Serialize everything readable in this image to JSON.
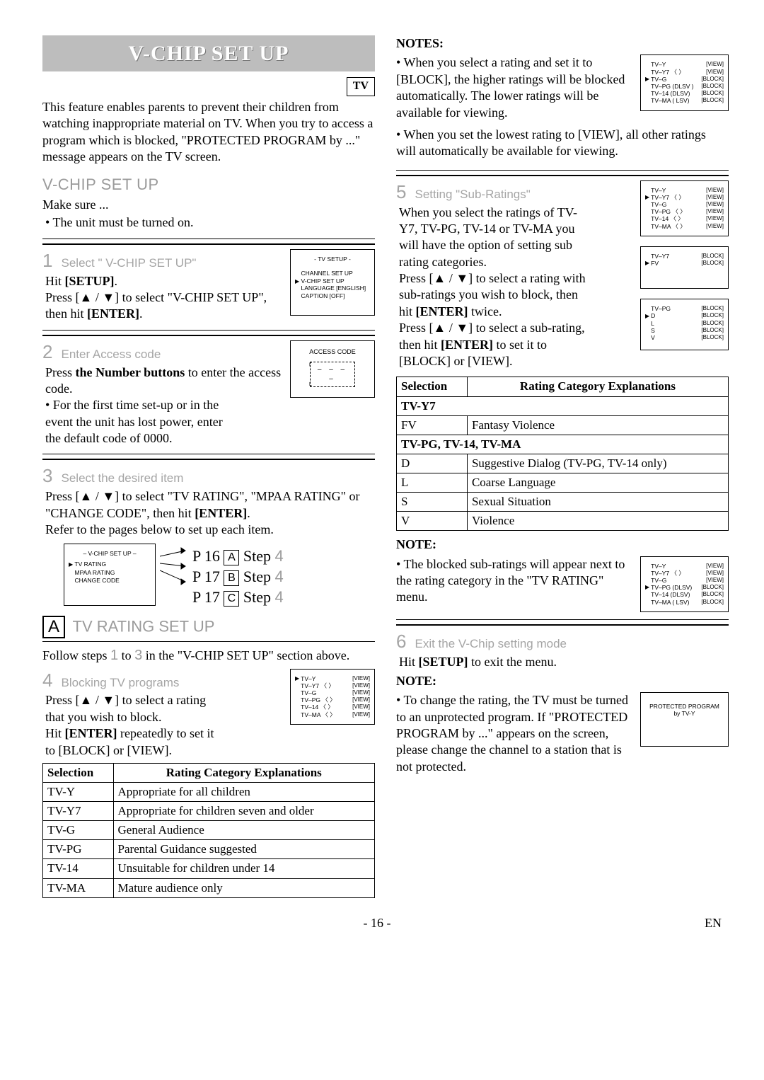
{
  "banner": "V-CHIP SET UP",
  "tv_label": "TV",
  "intro": "This feature enables parents to prevent their children from watching inappropriate material on TV. When you try to access a program which is blocked, \"PROTECTED PROGRAM by ...\" message appears on the TV screen.",
  "section_title": "V-CHIP SET UP",
  "make_sure": "Make sure ...",
  "make_sure_bullet": "• The unit must be turned on.",
  "step1": {
    "num": "1",
    "label": "Select \" V-CHIP SET UP\"",
    "l1a": "Hit ",
    "l1b": "[SETUP]",
    "l1c": ".",
    "l2": "Press [▲ / ▼] to select \"V-CHIP SET UP\", then hit ",
    "l2b": "[ENTER]",
    "l2c": ".",
    "shot_title": "- TV SETUP -",
    "shot_rows": [
      "CHANNEL SET UP",
      "V-CHIP SET UP",
      "LANGUAGE  [ENGLISH]",
      "CAPTION  [OFF]"
    ]
  },
  "step2": {
    "num": "2",
    "label": "Enter Access code",
    "l1": "Press ",
    "l1b": "the Number buttons",
    "l1c": " to enter the access code.",
    "bullet": "• For the first time set-up or in the event the unit has lost power, enter the default code of 0000.",
    "shot_title": "ACCESS CODE"
  },
  "step3": {
    "num": "3",
    "label": "Select the desired item",
    "l1": "Press [▲ / ▼] to select \"TV RATING\", \"MPAA RATING\" or \"CHANGE CODE\", then hit ",
    "l1b": "[ENTER]",
    "l1c": ".",
    "l2": "Refer to the pages below to set up each item.",
    "shot_title": "– V-CHIP SET UP –",
    "shot_rows": [
      "TV RATING",
      "MPAA RATING",
      "CHANGE CODE"
    ],
    "ref1": "P 16 ",
    "ref1b": "A",
    "ref1c": " Step ",
    "ref1d": "4",
    "ref2": "P 17 ",
    "ref2b": "B",
    "ref2c": " Step ",
    "ref2d": "4",
    "ref3": "P 17 ",
    "ref3b": "C",
    "ref3c": " Step ",
    "ref3d": "4"
  },
  "sectionA": {
    "letter": "A",
    "title": "TV RATING SET UP",
    "intro_a": "Follow steps ",
    "intro_b": "1",
    "intro_c": " to ",
    "intro_d": "3",
    "intro_e": " in the \"V-CHIP SET UP\" section above."
  },
  "step4": {
    "num": "4",
    "label": "Blocking TV programs",
    "l1": "Press [▲ / ▼] to select a rating that you wish to block.",
    "l2a": "Hit ",
    "l2b": "[ENTER]",
    "l2c": " repeatedly to set it to [BLOCK] or [VIEW]."
  },
  "shotA": {
    "rows": [
      {
        "l": "TV–Y",
        "r": "[VIEW]"
      },
      {
        "l": "TV–Y7  〈            〉",
        "r": "[VIEW]"
      },
      {
        "l": "TV–G",
        "r": "[VIEW]"
      },
      {
        "l": "TV–PG 〈            〉",
        "r": "[VIEW]"
      },
      {
        "l": "TV–14  〈            〉",
        "r": "[VIEW]"
      },
      {
        "l": "TV–MA 〈            〉",
        "r": "[VIEW]"
      }
    ]
  },
  "table1": {
    "h1": "Selection",
    "h2": "Rating Category Explanations",
    "rows": [
      [
        "TV-Y",
        "Appropriate for all children"
      ],
      [
        "TV-Y7",
        "Appropriate for children seven and older"
      ],
      [
        "TV-G",
        "General Audience"
      ],
      [
        "TV-PG",
        "Parental Guidance suggested"
      ],
      [
        "TV-14",
        "Unsuitable for children under 14"
      ],
      [
        "TV-MA",
        "Mature audience only"
      ]
    ]
  },
  "notesR": {
    "h": "NOTES:",
    "n1": "• When you select a rating and set it to [BLOCK], the higher ratings will be blocked automatically. The lower ratings will be available for viewing.",
    "n2": "• When you set the lowest rating to [VIEW], all other ratings will automatically be available for viewing."
  },
  "shotB": {
    "rows": [
      {
        "l": "TV–Y",
        "r": "[VIEW]"
      },
      {
        "l": "TV–Y7  〈            〉",
        "r": "[VIEW]"
      },
      {
        "l": "TV–G",
        "r": "[BLOCK]"
      },
      {
        "l": "TV–PG (DLSV )",
        "r": "[BLOCK]"
      },
      {
        "l": "TV–14  (DLSV)",
        "r": "[BLOCK]"
      },
      {
        "l": "TV–MA (  LSV)",
        "r": "[BLOCK]"
      }
    ]
  },
  "step5": {
    "num": "5",
    "label": "Setting \"Sub-Ratings\"",
    "p1": "When you select the ratings of TV-Y7, TV-PG, TV-14 or TV-MA you will have the option of setting sub rating categories.",
    "p2a": "Press [▲ / ▼] to select a rating with sub-ratings you wish to block, then hit ",
    "p2b": "[ENTER]",
    "p2c": " twice.",
    "p3a": "Press [▲ / ▼] to select a sub-rating, then hit ",
    "p3b": "[ENTER]",
    "p3c": " to set it to [BLOCK] or [VIEW]."
  },
  "shotC": {
    "rows": [
      {
        "l": "TV–Y",
        "r": "[VIEW]"
      },
      {
        "l": "TV–Y7  〈            〉",
        "r": "[VIEW]"
      },
      {
        "l": "TV–G",
        "r": "[VIEW]"
      },
      {
        "l": "TV–PG 〈            〉",
        "r": "[VIEW]"
      },
      {
        "l": "TV–14  〈            〉",
        "r": "[VIEW]"
      },
      {
        "l": "TV–MA 〈            〉",
        "r": "[VIEW]"
      }
    ]
  },
  "shotD": {
    "rows": [
      {
        "l": "TV–Y7",
        "r": "[BLOCK]"
      },
      {
        "l": "FV",
        "r": "[BLOCK]",
        "arrow": true
      }
    ]
  },
  "shotE": {
    "rows": [
      {
        "l": "TV–PG",
        "r": "[BLOCK]"
      },
      {
        "l": "D",
        "r": "[BLOCK]",
        "arrow": true
      },
      {
        "l": "L",
        "r": "[BLOCK]"
      },
      {
        "l": "S",
        "r": "[BLOCK]"
      },
      {
        "l": "V",
        "r": "[BLOCK]"
      }
    ]
  },
  "table2": {
    "h1": "Selection",
    "h2": "Rating Category Explanations",
    "sub1": "TV-Y7",
    "rows1": [
      [
        "FV",
        "Fantasy Violence"
      ]
    ],
    "sub2": "TV-PG, TV-14, TV-MA",
    "rows2": [
      [
        "D",
        "Suggestive Dialog    (TV-PG, TV-14 only)"
      ],
      [
        "L",
        "Coarse Language"
      ],
      [
        "S",
        "Sexual Situation"
      ],
      [
        "V",
        "Violence"
      ]
    ]
  },
  "noteR2": {
    "h": "NOTE:",
    "p": "• The blocked sub-ratings will appear next to the rating category in the \"TV RATING\" menu."
  },
  "shotF": {
    "rows": [
      {
        "l": "TV–Y",
        "r": "[VIEW]"
      },
      {
        "l": "TV–Y7  〈            〉",
        "r": "[VIEW]"
      },
      {
        "l": "TV–G",
        "r": "[VIEW]"
      },
      {
        "l": "TV–PG (DLSV)",
        "r": "[BLOCK]",
        "arrow": true
      },
      {
        "l": "TV–14  (DLSV)",
        "r": "[BLOCK]"
      },
      {
        "l": "TV–MA (  LSV)",
        "r": "[BLOCK]"
      }
    ]
  },
  "step6": {
    "num": "6",
    "label": "Exit the V-Chip setting mode",
    "p1a": "Hit ",
    "p1b": "[SETUP]",
    "p1c": " to exit the menu."
  },
  "noteR3": {
    "h": "NOTE:",
    "p": "• To change the rating, the TV must be turned to an unprotected program. If \"PROTECTED PROGRAM by ...\" appears on the screen, please change the channel to a station that is not protected."
  },
  "shotG": {
    "l1": "PROTECTED PROGRAM",
    "l2": "by TV-Y"
  },
  "page": {
    "num": "- 16 -",
    "lang": "EN"
  }
}
